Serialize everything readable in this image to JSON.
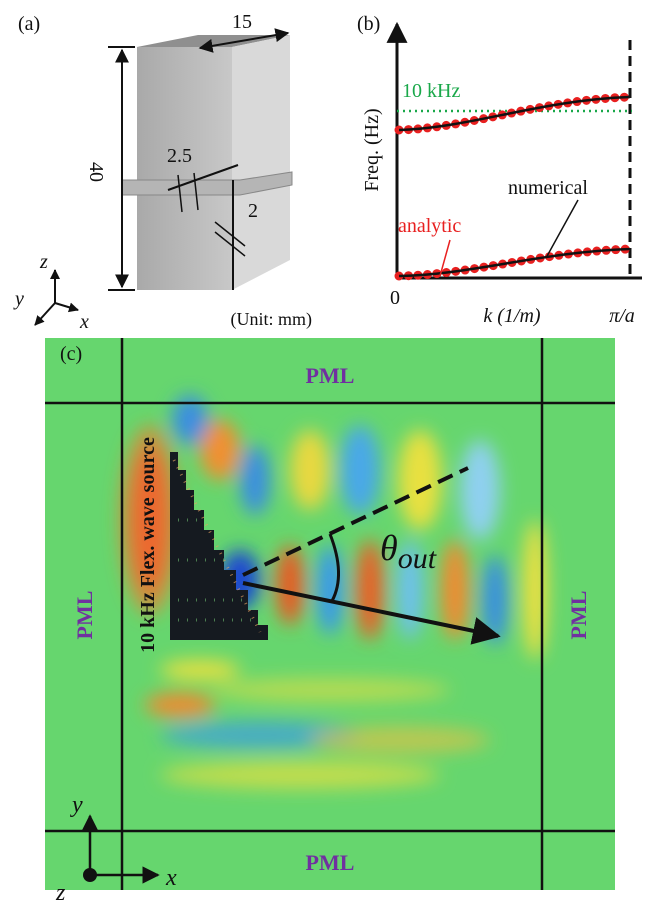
{
  "panels": {
    "a": {
      "label": "(a)",
      "dimensions": {
        "width": "15",
        "thickness": "2.5",
        "gap": "2",
        "height": "40"
      },
      "unit": "(Unit: mm)",
      "axes": {
        "z": "z",
        "y": "y",
        "x": "x"
      }
    },
    "b": {
      "label": "(b)",
      "reference_line": "10 kHz",
      "y_axis": "Freq. (Hz)",
      "curve_numerical": "numerical",
      "curve_analytic": "analytic",
      "x_origin": "0",
      "x_axis": "k (1/m)",
      "x_end": "π/a"
    },
    "c": {
      "label": "(c)",
      "pml": {
        "top": "PML",
        "bottom": "PML",
        "left": "PML",
        "right": "PML"
      },
      "source": "10 kHz Flex. wave source",
      "angle": {
        "symbol": "θ",
        "subscript": "out"
      },
      "axes": {
        "y": "y",
        "x": "x",
        "z": "z"
      }
    }
  }
}
